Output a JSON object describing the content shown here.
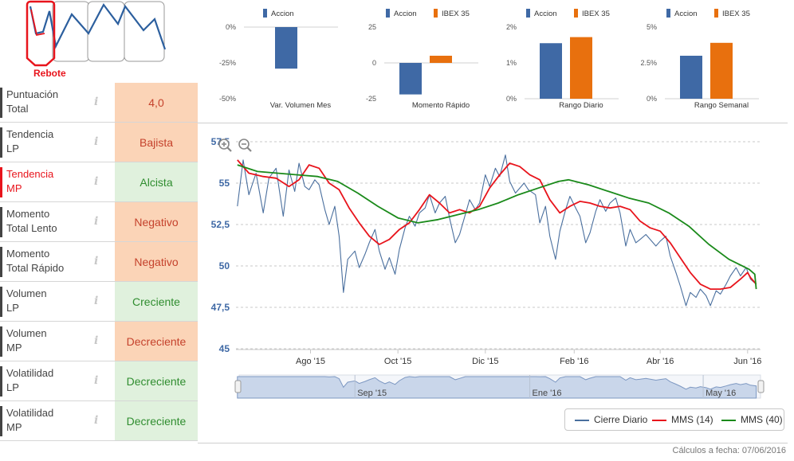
{
  "pattern": {
    "label": "Rebote"
  },
  "indicators": [
    {
      "label_1": "Puntuación",
      "label_2": "Total",
      "value": "4,0",
      "tone": "neg",
      "highlight": false
    },
    {
      "label_1": "Tendencia",
      "label_2": "LP",
      "value": "Bajista",
      "tone": "neg",
      "highlight": false
    },
    {
      "label_1": "Tendencia",
      "label_2": "MP",
      "value": "Alcista",
      "tone": "pos",
      "highlight": true
    },
    {
      "label_1": "Momento",
      "label_2": "Total Lento",
      "value": "Negativo",
      "tone": "neg",
      "highlight": false
    },
    {
      "label_1": "Momento",
      "label_2": "Total Rápido",
      "value": "Negativo",
      "tone": "neg",
      "highlight": false
    },
    {
      "label_1": "Volumen",
      "label_2": "LP",
      "value": "Creciente",
      "tone": "pos",
      "highlight": false
    },
    {
      "label_1": "Volumen",
      "label_2": "MP",
      "value": "Decreciente",
      "tone": "neg",
      "highlight": false
    },
    {
      "label_1": "Volatilidad",
      "label_2": "LP",
      "value": "Decreciente",
      "tone": "pos",
      "highlight": false
    },
    {
      "label_1": "Volatilidad",
      "label_2": "MP",
      "value": "Decreciente",
      "tone": "pos",
      "highlight": false
    }
  ],
  "info_glyph": "i",
  "colors": {
    "accion": "#3f69a5",
    "ibex": "#e8700e",
    "price": "#4a6f9e",
    "mms14": "#e8141c",
    "mms40": "#1a8a1a",
    "highlight": "#e8141c"
  },
  "chart_data": [
    {
      "type": "bar",
      "xlabel": "Var. Volumen Mes",
      "yticks": [
        "0%",
        "-25%",
        "-50%"
      ],
      "ylim": [
        -50,
        0
      ],
      "series": [
        {
          "name": "Accion",
          "values": [
            -29
          ]
        }
      ]
    },
    {
      "type": "bar",
      "xlabel": "Momento Rápido",
      "yticks": [
        "25",
        "0",
        "-25"
      ],
      "ylim": [
        -25,
        25
      ],
      "series": [
        {
          "name": "Accion",
          "values": [
            -22
          ]
        },
        {
          "name": "IBEX 35",
          "values": [
            5
          ]
        }
      ]
    },
    {
      "type": "bar",
      "xlabel": "Rango Diario",
      "yticks": [
        "2%",
        "1%",
        "0%"
      ],
      "ylim": [
        0,
        2
      ],
      "series": [
        {
          "name": "Accion",
          "values": [
            1.55
          ]
        },
        {
          "name": "IBEX 35",
          "values": [
            1.72
          ]
        }
      ]
    },
    {
      "type": "bar",
      "xlabel": "Rango Semanal",
      "yticks": [
        "5%",
        "2.5%",
        "0%"
      ],
      "ylim": [
        0,
        5
      ],
      "series": [
        {
          "name": "Accion",
          "values": [
            3.0
          ]
        },
        {
          "name": "IBEX 35",
          "values": [
            3.9
          ]
        }
      ]
    },
    {
      "type": "line",
      "x_axis": "date",
      "ylim": [
        45,
        57.5
      ],
      "yticks": [
        "57,5",
        "55",
        "52,5",
        "50",
        "47,5",
        "45"
      ],
      "xticks": [
        {
          "date": "2015-08-01",
          "label": "Ago '15"
        },
        {
          "date": "2015-10-01",
          "label": "Oct '15"
        },
        {
          "date": "2015-12-01",
          "label": "Dic '15"
        },
        {
          "date": "2016-02-01",
          "label": "Feb '16"
        },
        {
          "date": "2016-04-01",
          "label": "Abr '16"
        },
        {
          "date": "2016-06-01",
          "label": "Jun '16"
        }
      ],
      "navigator_labels": [
        {
          "date": "2015-09-01",
          "label": "Sep '15"
        },
        {
          "date": "2016-01-01",
          "label": "Ene '16"
        },
        {
          "date": "2016-05-01",
          "label": "May '16"
        }
      ],
      "series": [
        {
          "name": "Cierre Diario",
          "points": [
            [
              "2015-06-11",
              53.6
            ],
            [
              "2015-06-15",
              56.4
            ],
            [
              "2015-06-19",
              54.3
            ],
            [
              "2015-06-24",
              55.6
            ],
            [
              "2015-06-29",
              53.2
            ],
            [
              "2015-07-03",
              55.3
            ],
            [
              "2015-07-08",
              55.9
            ],
            [
              "2015-07-13",
              53.0
            ],
            [
              "2015-07-17",
              55.8
            ],
            [
              "2015-07-21",
              54.5
            ],
            [
              "2015-07-24",
              56.2
            ],
            [
              "2015-07-28",
              54.8
            ],
            [
              "2015-07-31",
              54.6
            ],
            [
              "2015-08-04",
              55.2
            ],
            [
              "2015-08-07",
              54.9
            ],
            [
              "2015-08-11",
              53.4
            ],
            [
              "2015-08-14",
              52.5
            ],
            [
              "2015-08-18",
              53.6
            ],
            [
              "2015-08-21",
              51.8
            ],
            [
              "2015-08-24",
              48.4
            ],
            [
              "2015-08-27",
              50.4
            ],
            [
              "2015-09-01",
              50.9
            ],
            [
              "2015-09-04",
              49.9
            ],
            [
              "2015-09-08",
              50.7
            ],
            [
              "2015-09-11",
              51.4
            ],
            [
              "2015-09-15",
              52.2
            ],
            [
              "2015-09-18",
              50.9
            ],
            [
              "2015-09-22",
              49.8
            ],
            [
              "2015-09-25",
              50.5
            ],
            [
              "2015-09-29",
              49.5
            ],
            [
              "2015-10-02",
              51.0
            ],
            [
              "2015-10-06",
              52.3
            ],
            [
              "2015-10-09",
              53.0
            ],
            [
              "2015-10-13",
              52.4
            ],
            [
              "2015-10-16",
              53.2
            ],
            [
              "2015-10-20",
              53.5
            ],
            [
              "2015-10-23",
              54.3
            ],
            [
              "2015-10-27",
              53.2
            ],
            [
              "2015-10-30",
              53.8
            ],
            [
              "2015-11-03",
              54.2
            ],
            [
              "2015-11-06",
              52.9
            ],
            [
              "2015-11-10",
              51.4
            ],
            [
              "2015-11-13",
              51.9
            ],
            [
              "2015-11-17",
              53.1
            ],
            [
              "2015-11-20",
              54.0
            ],
            [
              "2015-11-24",
              53.4
            ],
            [
              "2015-11-27",
              53.8
            ],
            [
              "2015-12-01",
              55.5
            ],
            [
              "2015-12-04",
              54.8
            ],
            [
              "2015-12-08",
              55.9
            ],
            [
              "2015-12-11",
              55.4
            ],
            [
              "2015-12-15",
              56.7
            ],
            [
              "2015-12-18",
              55.1
            ],
            [
              "2015-12-22",
              54.4
            ],
            [
              "2015-12-28",
              55.0
            ],
            [
              "2015-12-31",
              54.6
            ],
            [
              "2016-01-05",
              54.3
            ],
            [
              "2016-01-08",
              52.6
            ],
            [
              "2016-01-12",
              53.6
            ],
            [
              "2016-01-15",
              51.8
            ],
            [
              "2016-01-19",
              50.4
            ],
            [
              "2016-01-22",
              52.1
            ],
            [
              "2016-01-26",
              53.4
            ],
            [
              "2016-01-29",
              54.2
            ],
            [
              "2016-02-02",
              53.5
            ],
            [
              "2016-02-05",
              53.0
            ],
            [
              "2016-02-09",
              51.4
            ],
            [
              "2016-02-12",
              52.0
            ],
            [
              "2016-02-16",
              53.3
            ],
            [
              "2016-02-19",
              54.0
            ],
            [
              "2016-02-23",
              53.3
            ],
            [
              "2016-02-26",
              53.8
            ],
            [
              "2016-03-01",
              54.1
            ],
            [
              "2016-03-04",
              53.2
            ],
            [
              "2016-03-08",
              51.2
            ],
            [
              "2016-03-11",
              52.2
            ],
            [
              "2016-03-15",
              51.4
            ],
            [
              "2016-03-18",
              51.6
            ],
            [
              "2016-03-22",
              51.9
            ],
            [
              "2016-03-29",
              51.2
            ],
            [
              "2016-04-01",
              51.5
            ],
            [
              "2016-04-05",
              51.8
            ],
            [
              "2016-04-08",
              50.6
            ],
            [
              "2016-04-12",
              49.6
            ],
            [
              "2016-04-15",
              48.8
            ],
            [
              "2016-04-19",
              47.6
            ],
            [
              "2016-04-22",
              48.4
            ],
            [
              "2016-04-26",
              48.1
            ],
            [
              "2016-04-29",
              48.6
            ],
            [
              "2016-05-03",
              48.2
            ],
            [
              "2016-05-06",
              47.6
            ],
            [
              "2016-05-10",
              48.5
            ],
            [
              "2016-05-13",
              48.3
            ],
            [
              "2016-05-17",
              48.9
            ],
            [
              "2016-05-20",
              49.4
            ],
            [
              "2016-05-24",
              49.9
            ],
            [
              "2016-05-27",
              49.4
            ],
            [
              "2016-05-31",
              49.9
            ],
            [
              "2016-06-03",
              49.2
            ],
            [
              "2016-06-07",
              48.9
            ]
          ]
        },
        {
          "name": "MMS (14)",
          "points": [
            [
              "2015-06-11",
              56.4
            ],
            [
              "2015-06-19",
              55.6
            ],
            [
              "2015-06-29",
              55.4
            ],
            [
              "2015-07-08",
              55.3
            ],
            [
              "2015-07-17",
              54.8
            ],
            [
              "2015-07-24",
              55.2
            ],
            [
              "2015-07-31",
              56.1
            ],
            [
              "2015-08-07",
              55.9
            ],
            [
              "2015-08-14",
              55.0
            ],
            [
              "2015-08-21",
              54.6
            ],
            [
              "2015-08-28",
              53.5
            ],
            [
              "2015-09-04",
              52.6
            ],
            [
              "2015-09-11",
              51.8
            ],
            [
              "2015-09-18",
              51.3
            ],
            [
              "2015-09-25",
              51.6
            ],
            [
              "2015-10-02",
              52.2
            ],
            [
              "2015-10-09",
              52.6
            ],
            [
              "2015-10-16",
              53.4
            ],
            [
              "2015-10-23",
              54.3
            ],
            [
              "2015-10-30",
              53.8
            ],
            [
              "2015-11-06",
              53.2
            ],
            [
              "2015-11-13",
              53.4
            ],
            [
              "2015-11-20",
              53.2
            ],
            [
              "2015-11-27",
              53.6
            ],
            [
              "2015-12-04",
              54.7
            ],
            [
              "2015-12-11",
              55.5
            ],
            [
              "2015-12-18",
              56.2
            ],
            [
              "2015-12-25",
              56.0
            ],
            [
              "2016-01-01",
              55.5
            ],
            [
              "2016-01-08",
              55.2
            ],
            [
              "2016-01-15",
              54.0
            ],
            [
              "2016-01-22",
              53.2
            ],
            [
              "2016-01-29",
              53.6
            ],
            [
              "2016-02-05",
              53.9
            ],
            [
              "2016-02-12",
              53.8
            ],
            [
              "2016-02-19",
              53.6
            ],
            [
              "2016-02-26",
              53.5
            ],
            [
              "2016-03-04",
              53.6
            ],
            [
              "2016-03-11",
              53.4
            ],
            [
              "2016-03-18",
              52.7
            ],
            [
              "2016-03-25",
              52.3
            ],
            [
              "2016-04-01",
              52.1
            ],
            [
              "2016-04-08",
              51.4
            ],
            [
              "2016-04-15",
              50.5
            ],
            [
              "2016-04-22",
              49.6
            ],
            [
              "2016-04-29",
              48.9
            ],
            [
              "2016-05-06",
              48.6
            ],
            [
              "2016-05-13",
              48.6
            ],
            [
              "2016-05-20",
              48.7
            ],
            [
              "2016-05-27",
              49.2
            ],
            [
              "2016-06-01",
              49.6
            ],
            [
              "2016-06-03",
              49.3
            ],
            [
              "2016-06-07",
              48.9
            ]
          ]
        },
        {
          "name": "MMS (40)",
          "points": [
            [
              "2015-06-11",
              56.1
            ],
            [
              "2015-06-25",
              55.7
            ],
            [
              "2015-07-09",
              55.6
            ],
            [
              "2015-07-23",
              55.5
            ],
            [
              "2015-08-06",
              55.4
            ],
            [
              "2015-08-20",
              55.1
            ],
            [
              "2015-09-03",
              54.4
            ],
            [
              "2015-09-17",
              53.6
            ],
            [
              "2015-10-01",
              52.9
            ],
            [
              "2015-10-15",
              52.6
            ],
            [
              "2015-10-29",
              52.8
            ],
            [
              "2015-11-12",
              53.1
            ],
            [
              "2015-11-26",
              53.4
            ],
            [
              "2015-12-10",
              53.8
            ],
            [
              "2015-12-24",
              54.3
            ],
            [
              "2016-01-07",
              54.7
            ],
            [
              "2016-01-21",
              55.1
            ],
            [
              "2016-01-28",
              55.2
            ],
            [
              "2016-02-11",
              54.9
            ],
            [
              "2016-02-25",
              54.5
            ],
            [
              "2016-03-10",
              54.1
            ],
            [
              "2016-03-24",
              53.8
            ],
            [
              "2016-04-07",
              53.2
            ],
            [
              "2016-04-21",
              52.4
            ],
            [
              "2016-05-05",
              51.3
            ],
            [
              "2016-05-19",
              50.4
            ],
            [
              "2016-06-02",
              49.8
            ],
            [
              "2016-06-06",
              49.5
            ],
            [
              "2016-06-07",
              48.6
            ]
          ]
        }
      ],
      "legend": [
        "Cierre Diario",
        "MMS (14)",
        "MMS (40)"
      ]
    }
  ],
  "footer": "Cálculos a fecha: 07/06/2016"
}
